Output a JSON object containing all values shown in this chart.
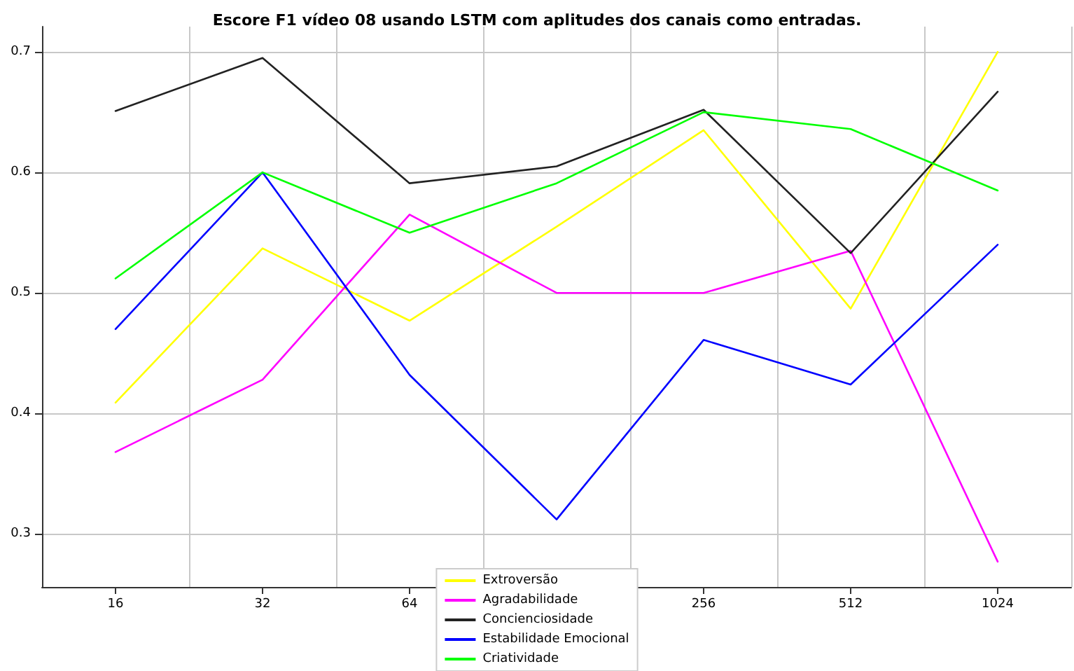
{
  "chart_data": {
    "type": "line",
    "title": "Escore F1 vídeo 08 usando LSTM com aplitudes dos canais como entradas.",
    "categories": [
      "16",
      "32",
      "64",
      null,
      "256",
      "512",
      "1024"
    ],
    "series": [
      {
        "name": "Extroversão",
        "color": "#ffff00",
        "values": [
          0.409,
          0.537,
          0.477,
          0.555,
          0.635,
          0.487,
          0.7
        ]
      },
      {
        "name": "Agradabilidade",
        "color": "#ff00ff",
        "values": [
          0.368,
          0.428,
          0.565,
          0.5,
          0.5,
          0.535,
          0.277
        ]
      },
      {
        "name": "Concienciosidade",
        "color": "#222222",
        "values": [
          0.651,
          0.695,
          0.591,
          0.605,
          0.652,
          0.533,
          0.667
        ]
      },
      {
        "name": "Estabilidade Emocional",
        "color": "#0000ff",
        "values": [
          0.47,
          0.6,
          0.432,
          0.312,
          0.461,
          0.424,
          0.54
        ]
      },
      {
        "name": "Criatividade",
        "color": "#00ff00",
        "values": [
          0.512,
          0.6,
          0.55,
          0.591,
          0.65,
          0.636,
          0.585
        ]
      }
    ],
    "ylim": [
      0.256,
      0.721
    ],
    "yticks": [
      0.3,
      0.4,
      0.5,
      0.6,
      0.7
    ],
    "grid": true,
    "legend": "bottom",
    "marker": "none",
    "line_style": "solid"
  }
}
